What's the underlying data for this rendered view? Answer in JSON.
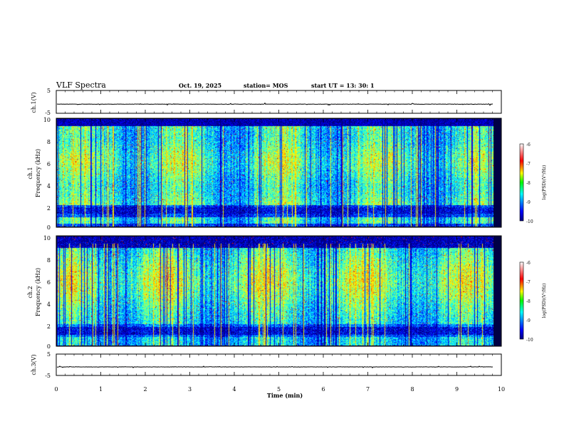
{
  "header": {
    "title": "VLF Spectra",
    "date": "Oct. 19, 2025",
    "station": "station= MOS",
    "start": "start  UT  =   13: 30: 1"
  },
  "chart_data": [
    {
      "id": "ch1-waveform",
      "type": "line",
      "ylabel": "ch.1(V)",
      "ylim": [
        -5,
        5
      ],
      "yticks": [
        "5",
        "-5"
      ],
      "baseline": -1.0
    },
    {
      "id": "ch1-spectrogram",
      "type": "heatmap",
      "ylabel": "Frequency (kHz)",
      "ylabel_prefix": "ch.1",
      "xlim": [
        0,
        10
      ],
      "ylim": [
        0,
        10
      ],
      "yticks": [
        "0",
        "2",
        "4",
        "6",
        "8",
        "10"
      ],
      "colorbar": {
        "label": "log(PSD)(V²/Hz)",
        "ticks": [
          "-6",
          "-7",
          "-8",
          "-9",
          "-10"
        ],
        "range": [
          -10,
          -6
        ]
      }
    },
    {
      "id": "ch2-spectrogram",
      "type": "heatmap",
      "ylabel": "Frequency (kHz)",
      "ylabel_prefix": "ch.2",
      "xlim": [
        0,
        10
      ],
      "ylim": [
        0,
        10
      ],
      "yticks": [
        "0",
        "2",
        "4",
        "6",
        "8",
        "10"
      ],
      "colorbar": {
        "label": "log(PSD)(V²/Hz)",
        "ticks": [
          "-6",
          "-7",
          "-8",
          "-9",
          "-10"
        ],
        "range": [
          -10,
          -6
        ]
      }
    },
    {
      "id": "ch3-waveform",
      "type": "line",
      "ylabel": "ch.3(V)",
      "ylim": [
        -5,
        5
      ],
      "yticks": [
        "5",
        "-5"
      ],
      "baseline": -1.0
    }
  ],
  "xaxis": {
    "label": "Time  (min)",
    "xlim": [
      0,
      10
    ],
    "ticks": [
      "0",
      "1",
      "2",
      "3",
      "4",
      "5",
      "6",
      "7",
      "8",
      "9",
      "10"
    ]
  },
  "colors": {
    "low": "#00007f",
    "high": "#ff0000",
    "background": "#ffffff"
  }
}
